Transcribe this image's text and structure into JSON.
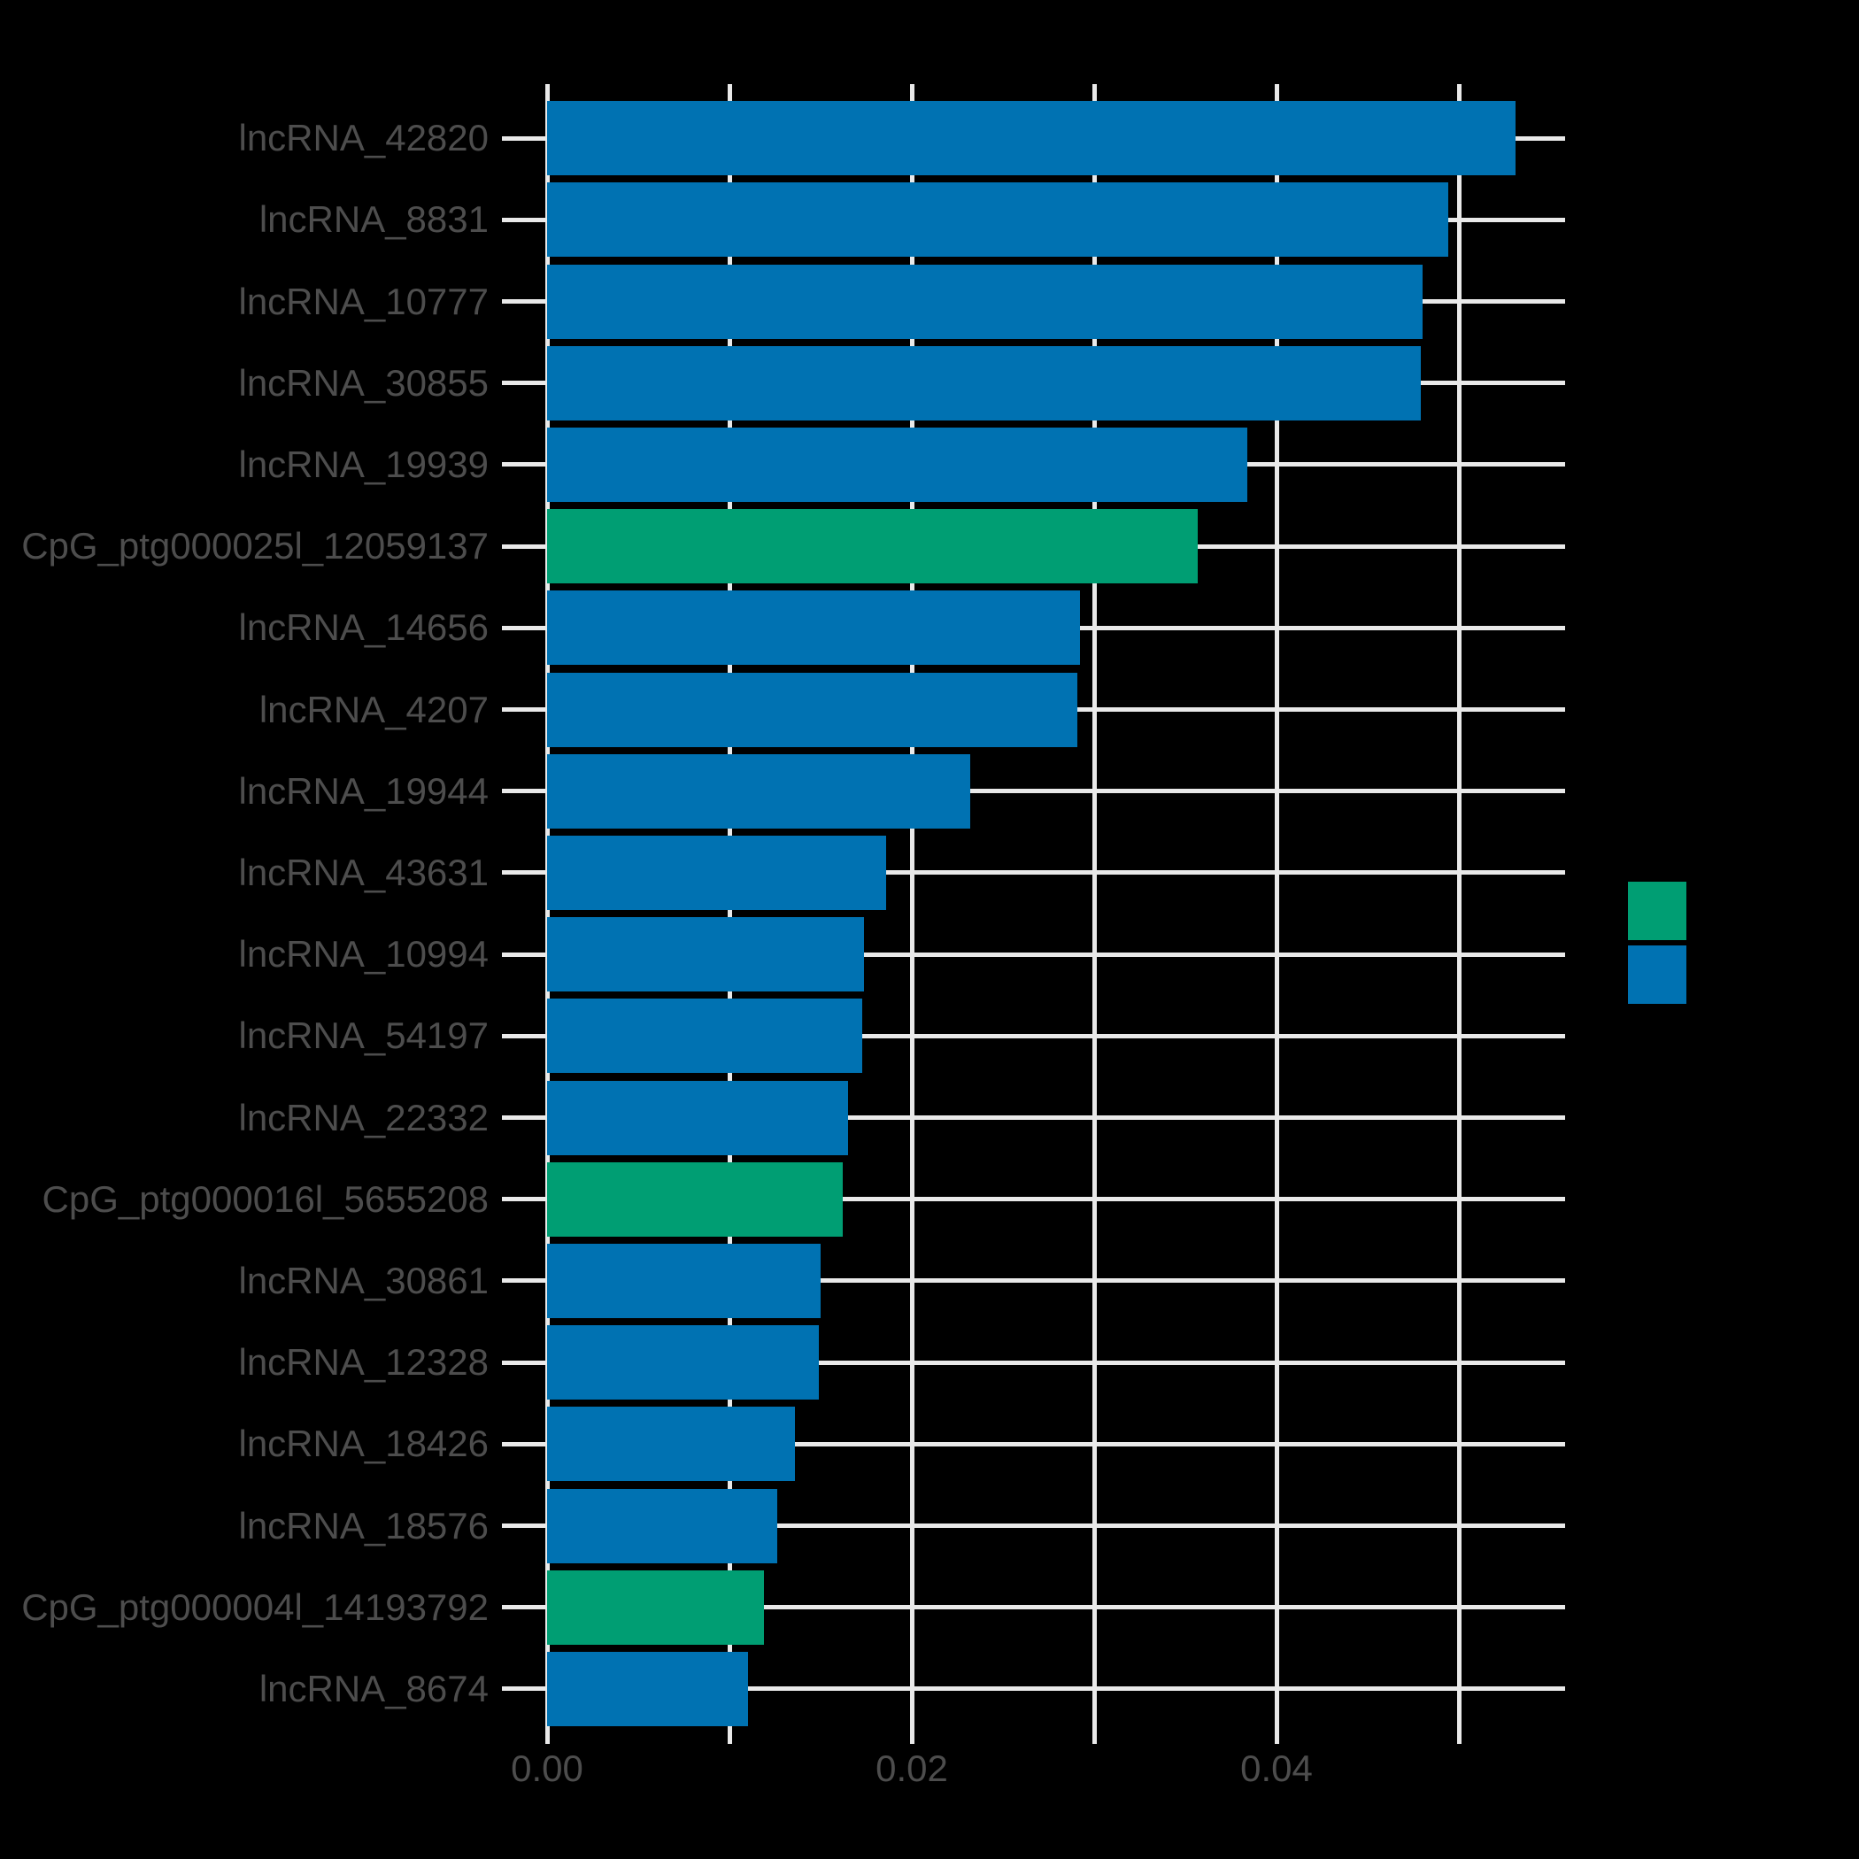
{
  "figure": {
    "background": "#000000",
    "title": ""
  },
  "chart_data": {
    "type": "bar",
    "orientation": "horizontal",
    "title": "",
    "xlabel": "",
    "ylabel": "",
    "xlim": [
      0,
      0.0558
    ],
    "grid": "on",
    "legend_position": "right",
    "categories": [
      "lncRNA_42820",
      "lncRNA_8831",
      "lncRNA_10777",
      "lncRNA_30855",
      "lncRNA_19939",
      "CpG_ptg000025l_12059137",
      "lncRNA_14656",
      "lncRNA_4207",
      "lncRNA_19944",
      "lncRNA_43631",
      "lncRNA_10994",
      "lncRNA_54197",
      "lncRNA_22332",
      "CpG_ptg000016l_5655208",
      "lncRNA_30861",
      "lncRNA_12328",
      "lncRNA_18426",
      "lncRNA_18576",
      "CpG_ptg000004l_14193792",
      "lncRNA_8674"
    ],
    "values": [
      0.0531,
      0.0494,
      0.048,
      0.0479,
      0.0384,
      0.0357,
      0.0292,
      0.0291,
      0.0232,
      0.0186,
      0.0174,
      0.0173,
      0.0165,
      0.0162,
      0.015,
      0.0149,
      0.0136,
      0.0126,
      0.0119,
      0.011
    ],
    "groups": [
      "lncRNA",
      "lncRNA",
      "lncRNA",
      "lncRNA",
      "lncRNA",
      "CpG",
      "lncRNA",
      "lncRNA",
      "lncRNA",
      "lncRNA",
      "lncRNA",
      "lncRNA",
      "lncRNA",
      "CpG",
      "lncRNA",
      "lncRNA",
      "lncRNA",
      "lncRNA",
      "CpG",
      "lncRNA"
    ],
    "x_ticks": [
      {
        "value": 0.0,
        "label": "0.00"
      },
      {
        "value": 0.01,
        "label": ""
      },
      {
        "value": 0.02,
        "label": "0.02"
      },
      {
        "value": 0.03,
        "label": ""
      },
      {
        "value": 0.04,
        "label": "0.04"
      },
      {
        "value": 0.05,
        "label": ""
      }
    ],
    "colors": {
      "lncRNA": "#0072B2",
      "CpG": "#009E73",
      "gridline": "#E9E9E9",
      "tick": "#E9E9E9",
      "text": "#4D4D4D",
      "background": "#000000"
    },
    "legend": {
      "entries": [
        {
          "group": "CpG",
          "color": "#009E73",
          "label": ""
        },
        {
          "group": "lncRNA",
          "color": "#0072B2",
          "label": ""
        }
      ]
    }
  }
}
